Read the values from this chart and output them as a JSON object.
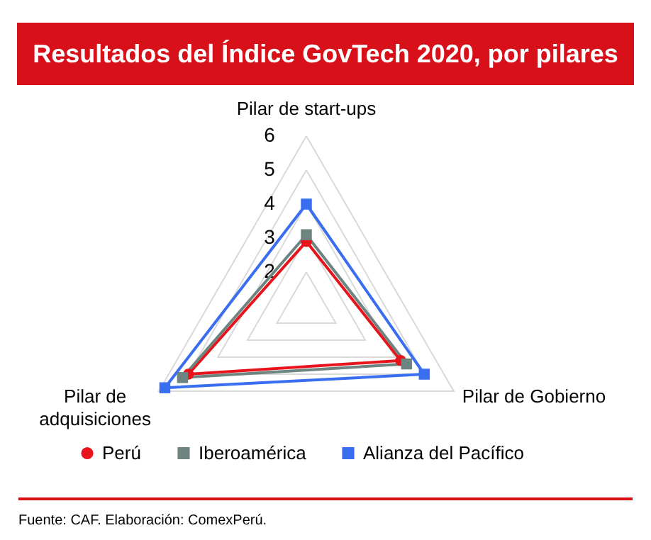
{
  "chart_data": {
    "type": "radar",
    "title": "Resultados del Índice GovTech 2020, por pilares",
    "categories": [
      "Pilar de start-ups",
      "Pilar de Gobierno",
      "Pilar de adquisiciones"
    ],
    "series": [
      {
        "name": "Perú",
        "color": "#e8141c",
        "marker": "circle",
        "values": [
          2.9,
          4.2,
          5.0
        ]
      },
      {
        "name": "Iberoamérica",
        "color": "#6e8480",
        "marker": "square",
        "values": [
          3.1,
          4.4,
          5.2
        ]
      },
      {
        "name": "Alianza del Pacífico",
        "color": "#3a6ef0",
        "marker": "square",
        "values": [
          4.0,
          5.0,
          5.8
        ]
      }
    ],
    "ylim": [
      1,
      6
    ],
    "yticks": [
      2,
      3,
      4,
      5,
      6
    ],
    "grid": true,
    "legend": "bottom",
    "annotations": [
      "Fuente: CAF. Elaboración: ComexPerú."
    ]
  }
}
